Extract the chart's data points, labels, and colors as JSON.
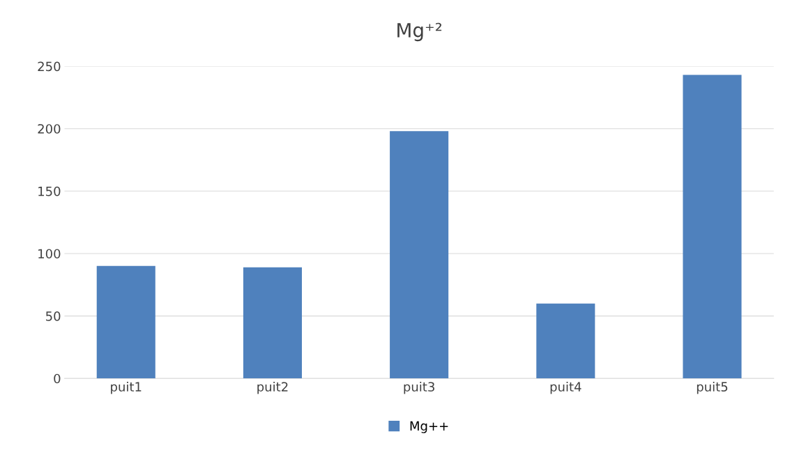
{
  "chart_data": {
    "type": "bar",
    "title": "Mg⁺²",
    "categories": [
      "puit1",
      "puit2",
      "puit3",
      "puit4",
      "puit5"
    ],
    "series": [
      {
        "name": "Mg++",
        "color": "#4f81bd",
        "values": [
          90,
          89,
          198,
          60,
          243
        ]
      }
    ],
    "ylim": [
      0,
      250
    ],
    "yticks": [
      0,
      50,
      100,
      150,
      200,
      250
    ],
    "grid": "y",
    "legend": "bottom"
  }
}
